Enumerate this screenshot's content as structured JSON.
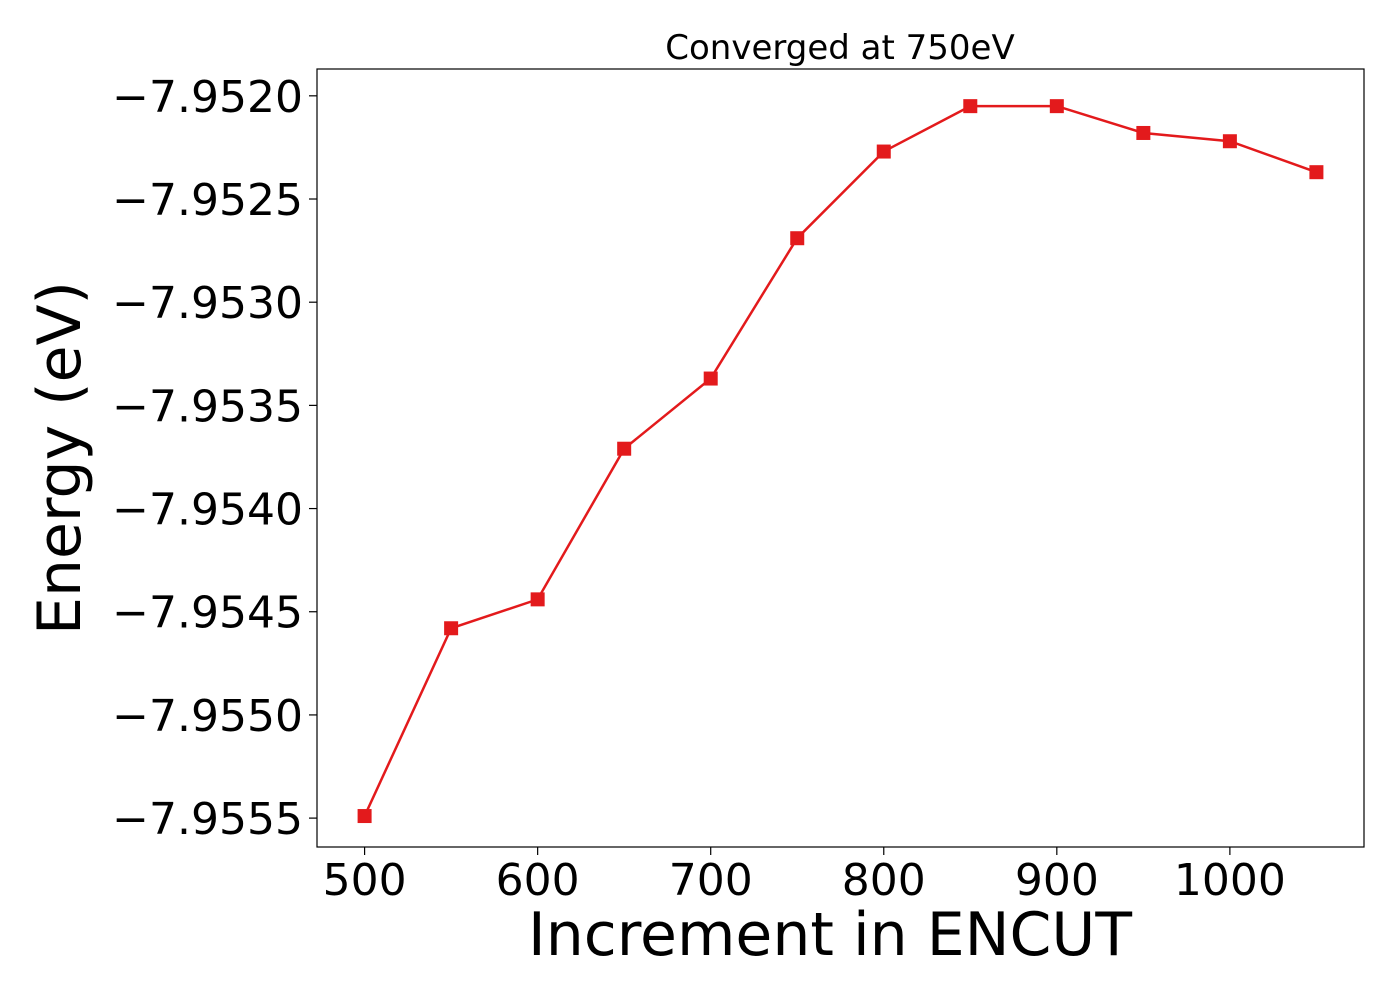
{
  "chart_data": {
    "type": "line",
    "title": "Converged at 750eV",
    "xlabel": "Increment in ENCUT",
    "ylabel": "Energy (eV)",
    "x": [
      500,
      550,
      600,
      650,
      700,
      750,
      800,
      850,
      900,
      950,
      1000,
      1050
    ],
    "series": [
      {
        "values": [
          -7.95549,
          -7.95458,
          -7.95444,
          -7.95371,
          -7.95337,
          -7.95269,
          -7.95227,
          -7.95205,
          -7.95205,
          -7.95218,
          -7.95222,
          -7.95237
        ],
        "color": "#e31a1c",
        "marker": "square"
      }
    ],
    "xlim": [
      472.5,
      1077.5
    ],
    "ylim": [
      -7.95564,
      -7.95187
    ],
    "xticks": [
      500,
      600,
      700,
      800,
      900,
      1000
    ],
    "xtick_labels": [
      "500",
      "600",
      "700",
      "800",
      "900",
      "1000"
    ],
    "yticks": [
      -7.9555,
      -7.955,
      -7.9545,
      -7.954,
      -7.9535,
      -7.953,
      -7.9525,
      -7.952
    ],
    "ytick_labels": [
      "−7.9555",
      "−7.9550",
      "−7.9545",
      "−7.9540",
      "−7.9535",
      "−7.9530",
      "−7.9525",
      "−7.9520"
    ],
    "grid": false
  }
}
